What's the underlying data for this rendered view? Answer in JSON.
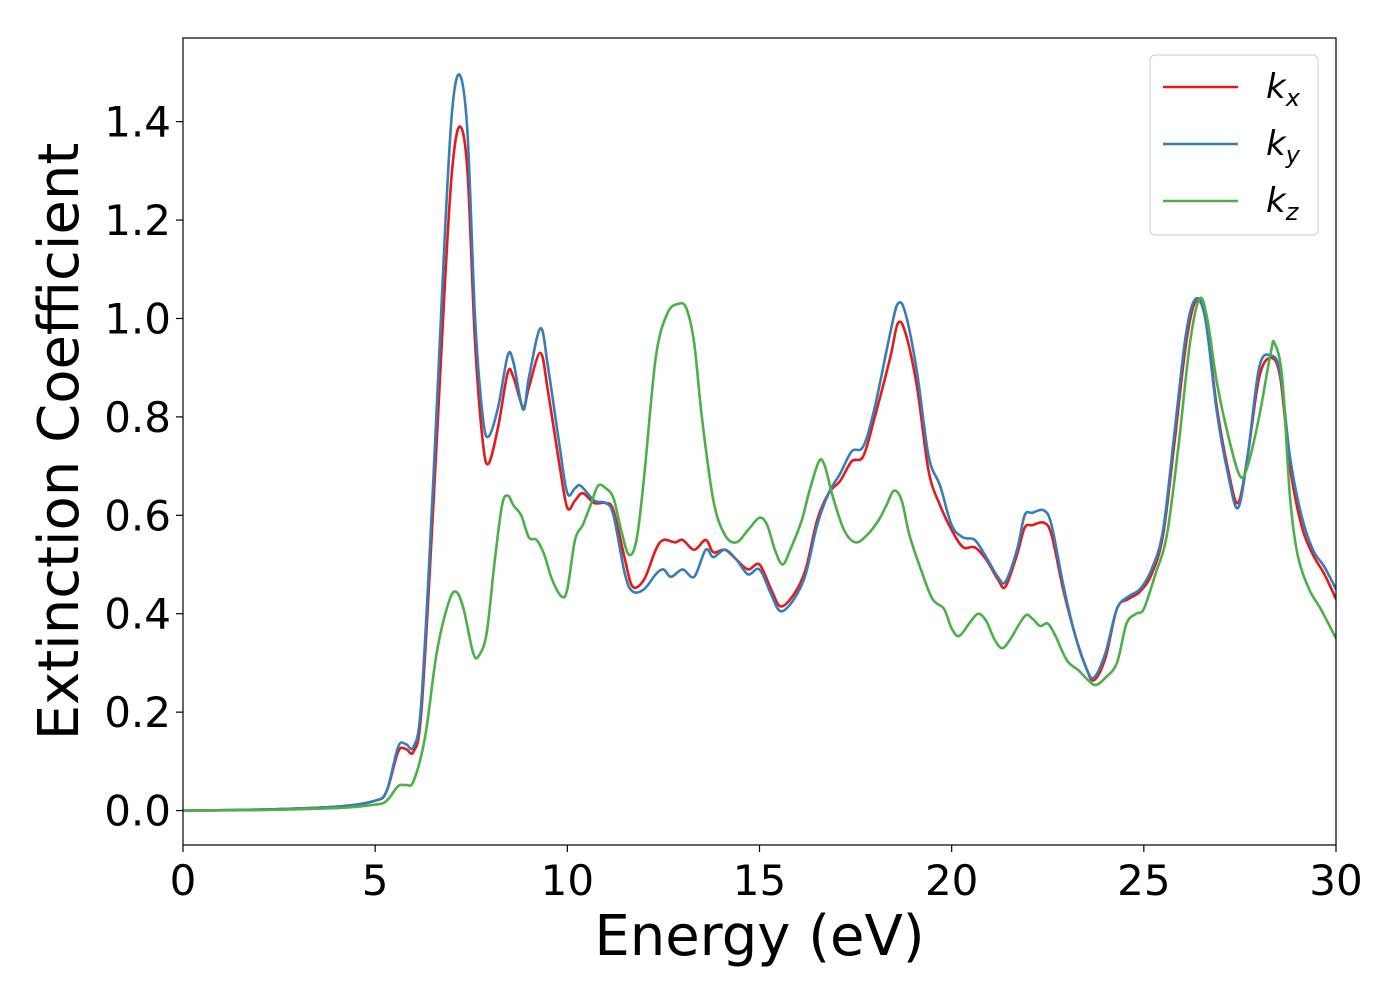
{
  "chart_data": {
    "type": "line",
    "title": "",
    "xlabel": "Energy (eV)",
    "ylabel": "Extinction Coefficient",
    "xlim": [
      0,
      30
    ],
    "ylim": [
      -0.07,
      1.57
    ],
    "xticks": [
      0,
      5,
      10,
      15,
      20,
      25,
      30
    ],
    "yticks": [
      0.0,
      0.2,
      0.4,
      0.6,
      0.8,
      1.0,
      1.2,
      1.4
    ],
    "xtick_labels": [
      "0",
      "5",
      "10",
      "15",
      "20",
      "25",
      "30"
    ],
    "ytick_labels": [
      "0.0",
      "0.2",
      "0.4",
      "0.6",
      "0.8",
      "1.0",
      "1.2",
      "1.4"
    ],
    "grid": false,
    "legend_position": "top-right",
    "series": [
      {
        "name": "k",
        "subscript": "x",
        "color": "#e41a1c",
        "points": [
          [
            0,
            0
          ],
          [
            2,
            0.002
          ],
          [
            4,
            0.008
          ],
          [
            5,
            0.02
          ],
          [
            5.3,
            0.04
          ],
          [
            5.6,
            0.12
          ],
          [
            5.8,
            0.125
          ],
          [
            6,
            0.12
          ],
          [
            6.2,
            0.2
          ],
          [
            6.5,
            0.6
          ],
          [
            6.8,
            1.05
          ],
          [
            7.0,
            1.3
          ],
          [
            7.2,
            1.39
          ],
          [
            7.4,
            1.3
          ],
          [
            7.6,
            0.95
          ],
          [
            7.8,
            0.75
          ],
          [
            7.95,
            0.705
          ],
          [
            8.2,
            0.78
          ],
          [
            8.45,
            0.89
          ],
          [
            8.6,
            0.88
          ],
          [
            8.85,
            0.82
          ],
          [
            9.0,
            0.86
          ],
          [
            9.3,
            0.93
          ],
          [
            9.5,
            0.85
          ],
          [
            9.8,
            0.7
          ],
          [
            10.0,
            0.615
          ],
          [
            10.2,
            0.63
          ],
          [
            10.4,
            0.645
          ],
          [
            10.7,
            0.625
          ],
          [
            11.0,
            0.625
          ],
          [
            11.2,
            0.61
          ],
          [
            11.5,
            0.51
          ],
          [
            11.7,
            0.455
          ],
          [
            12.0,
            0.47
          ],
          [
            12.3,
            0.53
          ],
          [
            12.5,
            0.55
          ],
          [
            12.8,
            0.545
          ],
          [
            13.0,
            0.55
          ],
          [
            13.3,
            0.53
          ],
          [
            13.6,
            0.55
          ],
          [
            13.8,
            0.525
          ],
          [
            14.1,
            0.53
          ],
          [
            14.4,
            0.51
          ],
          [
            14.7,
            0.49
          ],
          [
            15.0,
            0.5
          ],
          [
            15.3,
            0.45
          ],
          [
            15.55,
            0.415
          ],
          [
            15.9,
            0.44
          ],
          [
            16.2,
            0.49
          ],
          [
            16.5,
            0.59
          ],
          [
            16.8,
            0.645
          ],
          [
            17.1,
            0.67
          ],
          [
            17.4,
            0.71
          ],
          [
            17.7,
            0.72
          ],
          [
            18.0,
            0.8
          ],
          [
            18.4,
            0.92
          ],
          [
            18.6,
            0.99
          ],
          [
            18.8,
            0.97
          ],
          [
            19.1,
            0.86
          ],
          [
            19.4,
            0.69
          ],
          [
            19.7,
            0.62
          ],
          [
            20.0,
            0.57
          ],
          [
            20.3,
            0.535
          ],
          [
            20.6,
            0.535
          ],
          [
            20.9,
            0.51
          ],
          [
            21.2,
            0.47
          ],
          [
            21.4,
            0.455
          ],
          [
            21.7,
            0.52
          ],
          [
            21.9,
            0.575
          ],
          [
            22.1,
            0.58
          ],
          [
            22.4,
            0.585
          ],
          [
            22.6,
            0.56
          ],
          [
            22.9,
            0.45
          ],
          [
            23.2,
            0.36
          ],
          [
            23.5,
            0.29
          ],
          [
            23.7,
            0.265
          ],
          [
            24.0,
            0.31
          ],
          [
            24.3,
            0.41
          ],
          [
            24.6,
            0.43
          ],
          [
            24.9,
            0.445
          ],
          [
            25.2,
            0.48
          ],
          [
            25.5,
            0.56
          ],
          [
            25.8,
            0.75
          ],
          [
            26.1,
            0.95
          ],
          [
            26.35,
            1.035
          ],
          [
            26.6,
            1.0
          ],
          [
            26.9,
            0.82
          ],
          [
            27.2,
            0.69
          ],
          [
            27.45,
            0.625
          ],
          [
            27.7,
            0.72
          ],
          [
            28.0,
            0.88
          ],
          [
            28.3,
            0.92
          ],
          [
            28.55,
            0.88
          ],
          [
            28.8,
            0.7
          ],
          [
            29.1,
            0.58
          ],
          [
            29.4,
            0.52
          ],
          [
            29.7,
            0.48
          ],
          [
            30.0,
            0.43
          ]
        ]
      },
      {
        "name": "k",
        "subscript": "y",
        "color": "#377eb8",
        "points": [
          [
            0,
            0
          ],
          [
            2,
            0.002
          ],
          [
            4,
            0.008
          ],
          [
            5,
            0.02
          ],
          [
            5.3,
            0.04
          ],
          [
            5.6,
            0.13
          ],
          [
            5.8,
            0.135
          ],
          [
            6,
            0.13
          ],
          [
            6.2,
            0.22
          ],
          [
            6.5,
            0.65
          ],
          [
            6.8,
            1.15
          ],
          [
            7.0,
            1.42
          ],
          [
            7.2,
            1.495
          ],
          [
            7.4,
            1.38
          ],
          [
            7.6,
            1.0
          ],
          [
            7.8,
            0.8
          ],
          [
            7.95,
            0.76
          ],
          [
            8.2,
            0.82
          ],
          [
            8.45,
            0.925
          ],
          [
            8.6,
            0.91
          ],
          [
            8.85,
            0.815
          ],
          [
            9.0,
            0.88
          ],
          [
            9.3,
            0.98
          ],
          [
            9.5,
            0.9
          ],
          [
            9.8,
            0.74
          ],
          [
            10.0,
            0.645
          ],
          [
            10.2,
            0.655
          ],
          [
            10.35,
            0.66
          ],
          [
            10.7,
            0.63
          ],
          [
            11.0,
            0.625
          ],
          [
            11.2,
            0.6
          ],
          [
            11.5,
            0.48
          ],
          [
            11.7,
            0.445
          ],
          [
            12.0,
            0.45
          ],
          [
            12.3,
            0.48
          ],
          [
            12.5,
            0.49
          ],
          [
            12.7,
            0.475
          ],
          [
            13.0,
            0.49
          ],
          [
            13.3,
            0.475
          ],
          [
            13.6,
            0.53
          ],
          [
            13.8,
            0.515
          ],
          [
            14.1,
            0.53
          ],
          [
            14.4,
            0.51
          ],
          [
            14.7,
            0.48
          ],
          [
            15.0,
            0.49
          ],
          [
            15.3,
            0.44
          ],
          [
            15.55,
            0.405
          ],
          [
            15.9,
            0.43
          ],
          [
            16.2,
            0.48
          ],
          [
            16.5,
            0.58
          ],
          [
            16.8,
            0.645
          ],
          [
            17.1,
            0.685
          ],
          [
            17.4,
            0.73
          ],
          [
            17.7,
            0.74
          ],
          [
            18.0,
            0.82
          ],
          [
            18.4,
            0.97
          ],
          [
            18.6,
            1.03
          ],
          [
            18.8,
            1.01
          ],
          [
            19.1,
            0.89
          ],
          [
            19.4,
            0.72
          ],
          [
            19.7,
            0.66
          ],
          [
            20.0,
            0.58
          ],
          [
            20.3,
            0.555
          ],
          [
            20.6,
            0.55
          ],
          [
            20.9,
            0.515
          ],
          [
            21.2,
            0.475
          ],
          [
            21.4,
            0.465
          ],
          [
            21.7,
            0.53
          ],
          [
            21.9,
            0.6
          ],
          [
            22.1,
            0.605
          ],
          [
            22.4,
            0.61
          ],
          [
            22.6,
            0.58
          ],
          [
            22.9,
            0.46
          ],
          [
            23.2,
            0.36
          ],
          [
            23.5,
            0.29
          ],
          [
            23.7,
            0.27
          ],
          [
            24.0,
            0.32
          ],
          [
            24.3,
            0.41
          ],
          [
            24.6,
            0.435
          ],
          [
            24.9,
            0.45
          ],
          [
            25.2,
            0.49
          ],
          [
            25.5,
            0.57
          ],
          [
            25.8,
            0.77
          ],
          [
            26.1,
            0.97
          ],
          [
            26.35,
            1.04
          ],
          [
            26.6,
            1.0
          ],
          [
            26.9,
            0.81
          ],
          [
            27.2,
            0.68
          ],
          [
            27.45,
            0.615
          ],
          [
            27.7,
            0.72
          ],
          [
            28.0,
            0.9
          ],
          [
            28.3,
            0.925
          ],
          [
            28.55,
            0.89
          ],
          [
            28.8,
            0.72
          ],
          [
            29.1,
            0.6
          ],
          [
            29.4,
            0.53
          ],
          [
            29.7,
            0.495
          ],
          [
            30.0,
            0.45
          ]
        ]
      },
      {
        "name": "k",
        "subscript": "z",
        "color": "#4daf4a",
        "points": [
          [
            0,
            0
          ],
          [
            2,
            0.001
          ],
          [
            4,
            0.005
          ],
          [
            5,
            0.012
          ],
          [
            5.3,
            0.02
          ],
          [
            5.6,
            0.05
          ],
          [
            5.8,
            0.052
          ],
          [
            6.0,
            0.06
          ],
          [
            6.3,
            0.15
          ],
          [
            6.6,
            0.32
          ],
          [
            6.9,
            0.42
          ],
          [
            7.1,
            0.445
          ],
          [
            7.3,
            0.41
          ],
          [
            7.55,
            0.32
          ],
          [
            7.7,
            0.315
          ],
          [
            7.9,
            0.36
          ],
          [
            8.1,
            0.5
          ],
          [
            8.3,
            0.62
          ],
          [
            8.45,
            0.64
          ],
          [
            8.6,
            0.62
          ],
          [
            8.8,
            0.6
          ],
          [
            9.0,
            0.555
          ],
          [
            9.2,
            0.55
          ],
          [
            9.4,
            0.52
          ],
          [
            9.6,
            0.47
          ],
          [
            9.85,
            0.435
          ],
          [
            10.0,
            0.45
          ],
          [
            10.2,
            0.55
          ],
          [
            10.4,
            0.58
          ],
          [
            10.6,
            0.62
          ],
          [
            10.8,
            0.66
          ],
          [
            11.0,
            0.655
          ],
          [
            11.2,
            0.635
          ],
          [
            11.4,
            0.57
          ],
          [
            11.6,
            0.52
          ],
          [
            11.8,
            0.55
          ],
          [
            12.0,
            0.68
          ],
          [
            12.3,
            0.92
          ],
          [
            12.6,
            1.01
          ],
          [
            12.9,
            1.03
          ],
          [
            13.1,
            1.02
          ],
          [
            13.3,
            0.95
          ],
          [
            13.5,
            0.8
          ],
          [
            13.8,
            0.63
          ],
          [
            14.1,
            0.56
          ],
          [
            14.4,
            0.545
          ],
          [
            14.7,
            0.57
          ],
          [
            15.0,
            0.595
          ],
          [
            15.2,
            0.58
          ],
          [
            15.4,
            0.53
          ],
          [
            15.6,
            0.5
          ],
          [
            15.8,
            0.53
          ],
          [
            16.1,
            0.59
          ],
          [
            16.3,
            0.65
          ],
          [
            16.55,
            0.71
          ],
          [
            16.7,
            0.7
          ],
          [
            16.9,
            0.64
          ],
          [
            17.2,
            0.57
          ],
          [
            17.5,
            0.545
          ],
          [
            17.8,
            0.56
          ],
          [
            18.1,
            0.59
          ],
          [
            18.3,
            0.62
          ],
          [
            18.5,
            0.65
          ],
          [
            18.7,
            0.63
          ],
          [
            18.9,
            0.56
          ],
          [
            19.2,
            0.49
          ],
          [
            19.5,
            0.43
          ],
          [
            19.8,
            0.41
          ],
          [
            20.0,
            0.37
          ],
          [
            20.2,
            0.355
          ],
          [
            20.5,
            0.385
          ],
          [
            20.7,
            0.4
          ],
          [
            20.9,
            0.385
          ],
          [
            21.1,
            0.35
          ],
          [
            21.3,
            0.33
          ],
          [
            21.5,
            0.345
          ],
          [
            21.9,
            0.395
          ],
          [
            22.1,
            0.39
          ],
          [
            22.3,
            0.375
          ],
          [
            22.5,
            0.38
          ],
          [
            22.7,
            0.355
          ],
          [
            23.0,
            0.305
          ],
          [
            23.3,
            0.285
          ],
          [
            23.55,
            0.265
          ],
          [
            23.75,
            0.255
          ],
          [
            24.0,
            0.27
          ],
          [
            24.3,
            0.3
          ],
          [
            24.55,
            0.38
          ],
          [
            24.8,
            0.4
          ],
          [
            25.0,
            0.41
          ],
          [
            25.3,
            0.48
          ],
          [
            25.6,
            0.56
          ],
          [
            25.9,
            0.74
          ],
          [
            26.2,
            0.95
          ],
          [
            26.45,
            1.04
          ],
          [
            26.65,
            1.0
          ],
          [
            26.9,
            0.87
          ],
          [
            27.2,
            0.76
          ],
          [
            27.5,
            0.68
          ],
          [
            27.7,
            0.7
          ],
          [
            28.0,
            0.8
          ],
          [
            28.3,
            0.93
          ],
          [
            28.4,
            0.95
          ],
          [
            28.6,
            0.88
          ],
          [
            28.8,
            0.64
          ],
          [
            29.0,
            0.52
          ],
          [
            29.3,
            0.45
          ],
          [
            29.6,
            0.41
          ],
          [
            30.0,
            0.35
          ]
        ]
      }
    ]
  }
}
